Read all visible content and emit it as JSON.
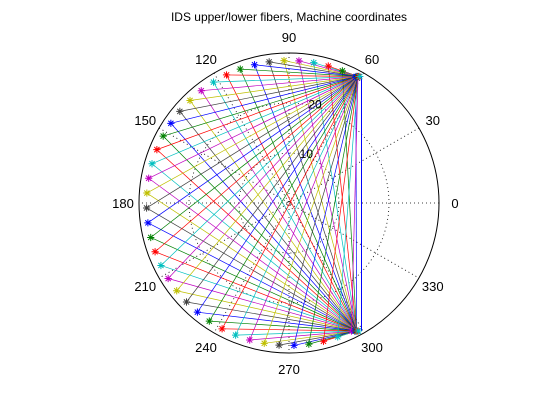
{
  "chart_data": {
    "type": "polar-line",
    "title": "IDS upper/lower fibers, Machine coordinates",
    "rmax": 30,
    "radial_ticks": [
      {
        "r": 10,
        "label": "10"
      },
      {
        "r": 20,
        "label": "20"
      }
    ],
    "angle_ticks": [
      {
        "deg": 0,
        "label": "0"
      },
      {
        "deg": 30,
        "label": "30"
      },
      {
        "deg": 60,
        "label": "60"
      },
      {
        "deg": 90,
        "label": "90"
      },
      {
        "deg": 120,
        "label": "120"
      },
      {
        "deg": 150,
        "label": "150"
      },
      {
        "deg": 180,
        "label": "180"
      },
      {
        "deg": 210,
        "label": "210"
      },
      {
        "deg": 240,
        "label": "240"
      },
      {
        "deg": 270,
        "label": "270"
      },
      {
        "deg": 300,
        "label": "300"
      },
      {
        "deg": 330,
        "label": "330"
      }
    ],
    "grid": true,
    "vertical_line_x": 14.5,
    "hub_upper": {
      "x": 13.8,
      "y": 25.3
    },
    "hub_lower": {
      "x": 13.5,
      "y": -25.6
    },
    "outer_radius": 28.5,
    "outer_angles_deg": [
      62,
      68,
      74,
      80,
      86,
      92,
      98,
      104,
      110,
      116,
      122,
      128,
      134,
      140,
      146,
      152,
      158,
      164,
      170,
      176,
      182,
      188,
      194,
      200,
      206,
      212,
      218,
      224,
      230,
      236,
      242,
      248,
      254,
      260,
      266,
      272,
      278,
      284,
      290,
      296
    ],
    "series_colors": [
      "#0000ff",
      "#008000",
      "#ff0000",
      "#00bfbf",
      "#bf00bf",
      "#bfbf00",
      "#404040"
    ]
  }
}
